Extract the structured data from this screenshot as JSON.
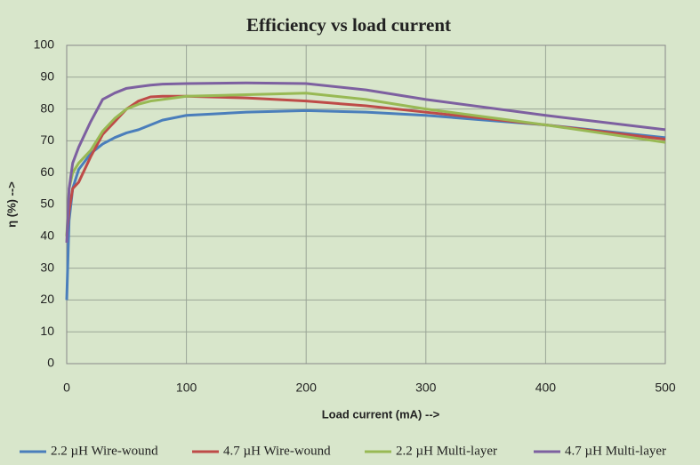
{
  "chart_data": {
    "type": "line",
    "title": "Efficiency vs load current",
    "x_label": "Load current (mA) -->",
    "y_label": "η (%) -->",
    "x": [
      0,
      2,
      5,
      10,
      20,
      30,
      40,
      50,
      60,
      70,
      80,
      100,
      150,
      200,
      250,
      300,
      400,
      500
    ],
    "series": [
      {
        "name": "2.2 µH Wire-wound",
        "color": "#4a7ebb",
        "values": [
          20,
          45,
          55,
          61,
          66,
          69,
          71,
          72.5,
          73.5,
          75,
          76.5,
          78,
          79,
          79.5,
          79,
          78,
          75,
          71
        ]
      },
      {
        "name": "4.7 µH Wire-wound",
        "color": "#be4b48",
        "values": [
          40,
          48,
          55,
          57,
          65,
          72,
          76,
          80,
          82.5,
          83.8,
          84,
          84,
          83.5,
          82.5,
          81,
          79,
          75,
          70.5
        ]
      },
      {
        "name": "2.2 µH Multi-layer",
        "color": "#98b954",
        "values": [
          40,
          55,
          60,
          63,
          67,
          73,
          77,
          80,
          81.5,
          82.5,
          83,
          84,
          84.5,
          85,
          83,
          80,
          75,
          69.5
        ]
      },
      {
        "name": "4.7 µH Multi-layer",
        "color": "#7d60a0",
        "values": [
          38,
          55,
          63,
          68,
          76,
          83,
          85,
          86.5,
          87,
          87.5,
          87.8,
          88,
          88.2,
          88,
          86,
          83,
          78,
          73.5
        ]
      }
    ],
    "xlim": [
      0,
      500
    ],
    "xticks": [
      0,
      100,
      200,
      300,
      400,
      500
    ],
    "ylim": [
      0,
      100
    ],
    "yticks": [
      0,
      10,
      20,
      30,
      40,
      50,
      60,
      70,
      80,
      90,
      100
    ],
    "grid": true,
    "legend": "bottom"
  }
}
